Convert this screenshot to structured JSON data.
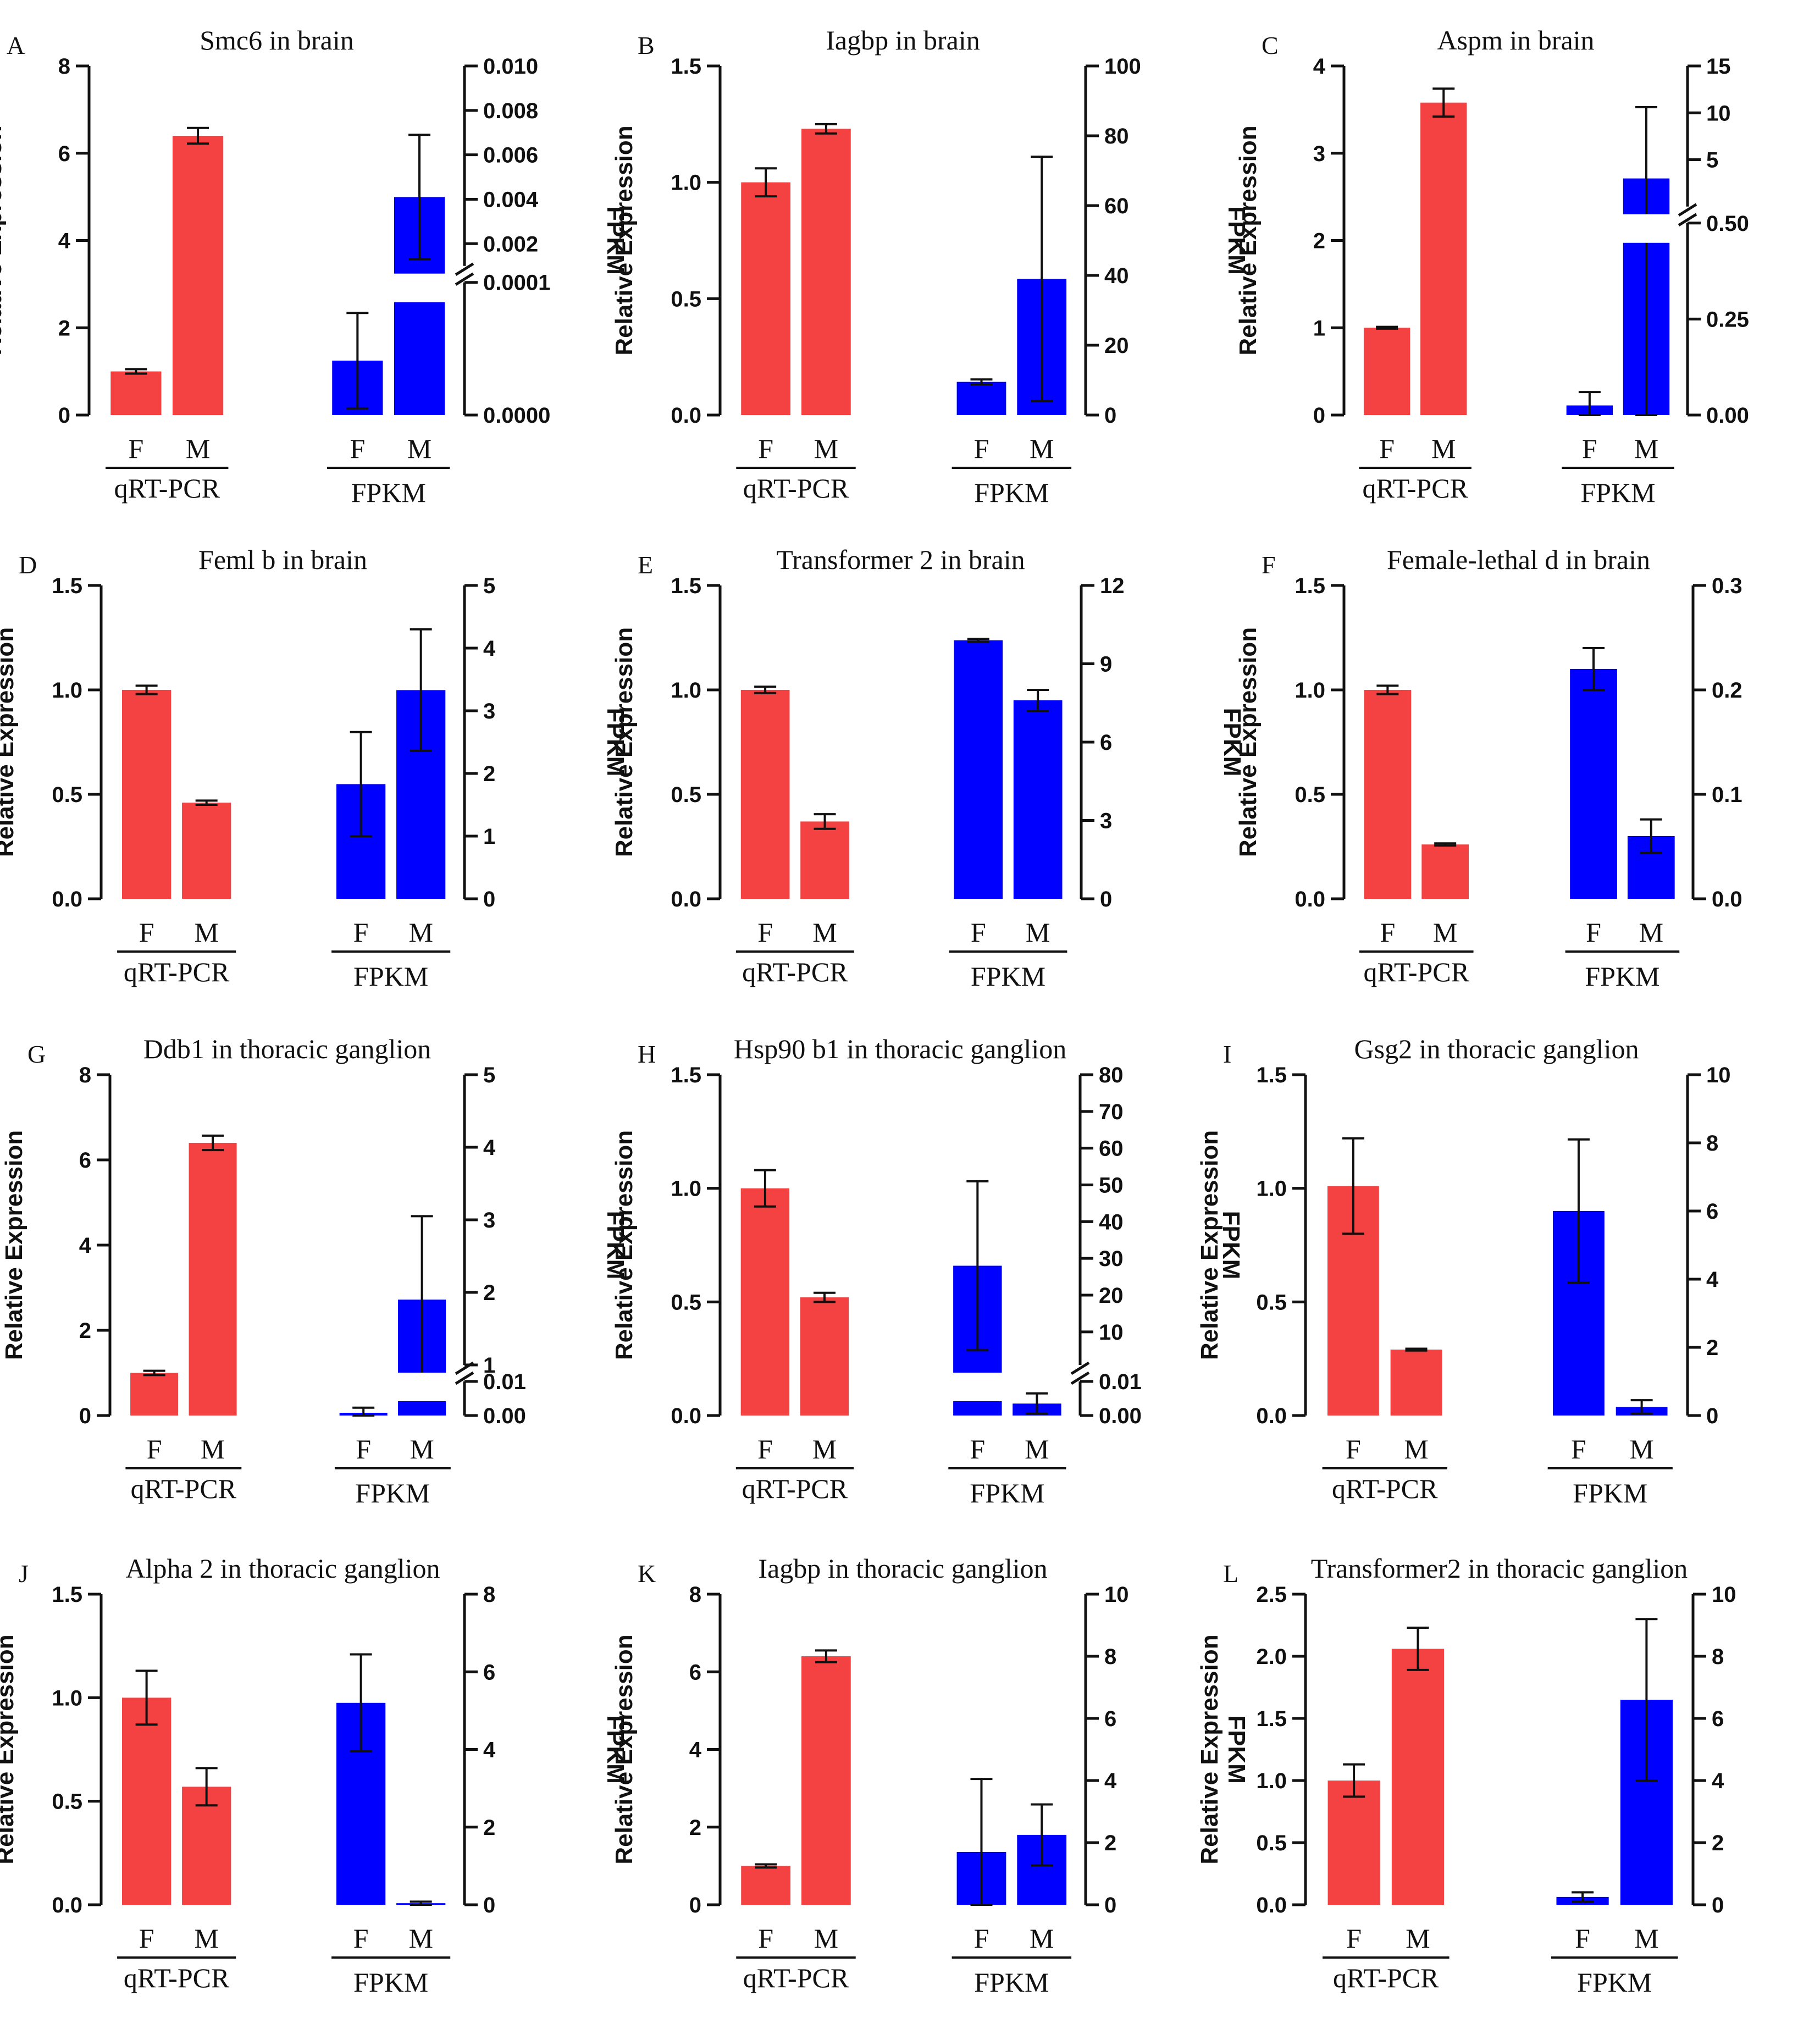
{
  "colors": {
    "qrt": "#f44141",
    "fpkm": "#0000ff",
    "axis": "#111111"
  },
  "common": {
    "left_axis_label": "Relative Expression",
    "right_axis_label": "FPKM",
    "group_labels": [
      "qRT-PCR",
      "FPKM"
    ],
    "category_labels": [
      "F",
      "M"
    ]
  },
  "chart_data": [
    {
      "panel": "A",
      "title": "Smc6 in brain",
      "type": "bar",
      "left": {
        "min": 0,
        "max": 8,
        "ticks": [
          "0",
          "2",
          "4",
          "6",
          "8"
        ]
      },
      "right": {
        "broken": true,
        "lower": {
          "min": 0,
          "max": 0.0001,
          "ticks": [
            "0.0000",
            "0.0001"
          ]
        },
        "upper": {
          "min": 0.001,
          "max": 0.01,
          "ticks": [
            "0.002",
            "0.004",
            "0.006",
            "0.008",
            "0.010"
          ]
        }
      },
      "qrt": [
        {
          "label": "F",
          "value": 1.0,
          "err": 0.05
        },
        {
          "label": "M",
          "value": 6.4,
          "err": 0.18
        }
      ],
      "fpkm": [
        {
          "label": "F",
          "value": 4.1e-05,
          "err": 3.6e-05
        },
        {
          "label": "M",
          "value": 0.0041,
          "err": 0.0028
        }
      ]
    },
    {
      "panel": "B",
      "title": "Iagbp in brain",
      "type": "bar",
      "left": {
        "min": 0,
        "max": 1.5,
        "ticks": [
          "0.0",
          "0.5",
          "1.0",
          "1.5"
        ]
      },
      "right": {
        "broken": false,
        "min": 0,
        "max": 100,
        "ticks": [
          "0",
          "20",
          "40",
          "60",
          "80",
          "100"
        ]
      },
      "qrt": [
        {
          "label": "F",
          "value": 1.0,
          "err": 0.06
        },
        {
          "label": "M",
          "value": 1.23,
          "err": 0.02
        }
      ],
      "fpkm": [
        {
          "label": "F",
          "value": 9.5,
          "err": 0.7
        },
        {
          "label": "M",
          "value": 39,
          "err": 35
        }
      ]
    },
    {
      "panel": "C",
      "title": "Aspm in brain",
      "type": "bar",
      "left": {
        "min": 0,
        "max": 4,
        "ticks": [
          "0",
          "1",
          "2",
          "3",
          "4"
        ]
      },
      "right": {
        "broken": true,
        "lower": {
          "min": 0,
          "max": 0.5,
          "ticks": [
            "0.00",
            "0.25",
            "0.50"
          ]
        },
        "upper": {
          "min": 0,
          "max": 15,
          "ticks": [
            "5",
            "10",
            "15"
          ]
        }
      },
      "qrt": [
        {
          "label": "F",
          "value": 1.0,
          "err": 0.01
        },
        {
          "label": "M",
          "value": 3.58,
          "err": 0.16
        }
      ],
      "fpkm": [
        {
          "label": "F",
          "value": 0.025,
          "err": 0.035
        },
        {
          "label": "M",
          "value": 3.0,
          "err": 7.6
        }
      ]
    },
    {
      "panel": "D",
      "title": "Feml b in brain",
      "type": "bar",
      "left": {
        "min": 0,
        "max": 1.5,
        "ticks": [
          "0.0",
          "0.5",
          "1.0",
          "1.5"
        ]
      },
      "right": {
        "broken": false,
        "min": 0,
        "max": 5,
        "ticks": [
          "0",
          "1",
          "2",
          "3",
          "4",
          "5"
        ]
      },
      "qrt": [
        {
          "label": "F",
          "value": 1.0,
          "err": 0.02
        },
        {
          "label": "M",
          "value": 0.46,
          "err": 0.01
        }
      ],
      "fpkm": [
        {
          "label": "F",
          "value": 1.83,
          "err": 0.83
        },
        {
          "label": "M",
          "value": 3.33,
          "err": 0.97
        }
      ]
    },
    {
      "panel": "E",
      "title": "Transformer 2 in brain",
      "type": "bar",
      "left": {
        "min": 0,
        "max": 1.5,
        "ticks": [
          "0.0",
          "0.5",
          "1.0",
          "1.5"
        ]
      },
      "right": {
        "broken": false,
        "min": 0,
        "max": 12,
        "ticks": [
          "0",
          "3",
          "6",
          "9",
          "12"
        ]
      },
      "qrt": [
        {
          "label": "F",
          "value": 1.0,
          "err": 0.015
        },
        {
          "label": "M",
          "value": 0.37,
          "err": 0.035
        }
      ],
      "fpkm": [
        {
          "label": "F",
          "value": 9.9,
          "err": 0.05
        },
        {
          "label": "M",
          "value": 7.6,
          "err": 0.4
        }
      ]
    },
    {
      "panel": "F",
      "title": "Female-lethal d in brain",
      "type": "bar",
      "left": {
        "min": 0,
        "max": 1.5,
        "ticks": [
          "0.0",
          "0.5",
          "1.0",
          "1.5"
        ]
      },
      "right": {
        "broken": false,
        "min": 0,
        "max": 0.3,
        "ticks": [
          "0.0",
          "0.1",
          "0.2",
          "0.3"
        ]
      },
      "qrt": [
        {
          "label": "F",
          "value": 1.0,
          "err": 0.02
        },
        {
          "label": "M",
          "value": 0.26,
          "err": 0.005
        }
      ],
      "fpkm": [
        {
          "label": "F",
          "value": 0.22,
          "err": 0.02
        },
        {
          "label": "M",
          "value": 0.06,
          "err": 0.016
        }
      ]
    },
    {
      "panel": "G",
      "title": "Ddb1 in thoracic ganglion",
      "type": "bar",
      "left": {
        "min": 0,
        "max": 8,
        "ticks": [
          "0",
          "2",
          "4",
          "6",
          "8"
        ]
      },
      "right": {
        "broken": true,
        "lower": {
          "min": 0,
          "max": 0.01,
          "ticks": [
            "0.00",
            "0.01"
          ]
        },
        "upper": {
          "min": 1,
          "max": 5,
          "ticks": [
            "1",
            "2",
            "3",
            "4",
            "5"
          ]
        }
      },
      "qrt": [
        {
          "label": "F",
          "value": 1.0,
          "err": 0.05
        },
        {
          "label": "M",
          "value": 6.4,
          "err": 0.17
        }
      ],
      "fpkm": [
        {
          "label": "F",
          "value": 0.0008,
          "err": 0.0015
        },
        {
          "label": "M",
          "value": 1.9,
          "err": 1.15
        }
      ]
    },
    {
      "panel": "H",
      "title": "Hsp90 b1 in thoracic ganglion",
      "type": "bar",
      "left": {
        "min": 0,
        "max": 1.5,
        "ticks": [
          "0.0",
          "0.5",
          "1.0",
          "1.5"
        ]
      },
      "right": {
        "broken": true,
        "lower": {
          "min": 0,
          "max": 0.01,
          "ticks": [
            "0.00",
            "0.01"
          ]
        },
        "upper": {
          "min": 1,
          "max": 80,
          "ticks": [
            "10",
            "20",
            "30",
            "40",
            "50",
            "60",
            "70",
            "80"
          ]
        }
      },
      "qrt": [
        {
          "label": "F",
          "value": 1.0,
          "err": 0.08
        },
        {
          "label": "M",
          "value": 0.52,
          "err": 0.02
        }
      ],
      "fpkm": [
        {
          "label": "F",
          "value": 28,
          "err": 23
        },
        {
          "label": "M",
          "value": 0.0035,
          "err": 0.003
        }
      ]
    },
    {
      "panel": "I",
      "title": "Gsg2 in thoracic ganglion",
      "type": "bar",
      "left": {
        "min": 0,
        "max": 1.5,
        "ticks": [
          "0.0",
          "0.5",
          "1.0",
          "1.5"
        ]
      },
      "right": {
        "broken": false,
        "min": 0,
        "max": 10,
        "ticks": [
          "0",
          "2",
          "4",
          "6",
          "8",
          "10"
        ]
      },
      "qrt": [
        {
          "label": "F",
          "value": 1.01,
          "err": 0.21
        },
        {
          "label": "M",
          "value": 0.29,
          "err": 0.004
        }
      ],
      "fpkm": [
        {
          "label": "F",
          "value": 6.0,
          "err": 2.1
        },
        {
          "label": "M",
          "value": 0.25,
          "err": 0.2
        }
      ]
    },
    {
      "panel": "J",
      "title": "Alpha 2 in thoracic ganglion",
      "type": "bar",
      "left": {
        "min": 0,
        "max": 1.5,
        "ticks": [
          "0.0",
          "0.5",
          "1.0",
          "1.5"
        ]
      },
      "right": {
        "broken": false,
        "min": 0,
        "max": 8,
        "ticks": [
          "0",
          "2",
          "4",
          "6",
          "8"
        ]
      },
      "qrt": [
        {
          "label": "F",
          "value": 1.0,
          "err": 0.13
        },
        {
          "label": "M",
          "value": 0.57,
          "err": 0.09
        }
      ],
      "fpkm": [
        {
          "label": "F",
          "value": 5.2,
          "err": 1.25
        },
        {
          "label": "M",
          "value": 0.04,
          "err": 0.04
        }
      ]
    },
    {
      "panel": "K",
      "title": "Iagbp in thoracic ganglion",
      "type": "bar",
      "left": {
        "min": 0,
        "max": 8,
        "ticks": [
          "0",
          "2",
          "4",
          "6",
          "8"
        ]
      },
      "right": {
        "broken": false,
        "min": 0,
        "max": 10,
        "ticks": [
          "0",
          "2",
          "4",
          "6",
          "8",
          "10"
        ]
      },
      "qrt": [
        {
          "label": "F",
          "value": 1.0,
          "err": 0.04
        },
        {
          "label": "M",
          "value": 6.4,
          "err": 0.15
        }
      ],
      "fpkm": [
        {
          "label": "F",
          "value": 1.7,
          "err": 2.35
        },
        {
          "label": "M",
          "value": 2.25,
          "err": 0.98
        }
      ]
    },
    {
      "panel": "L",
      "title": "Transformer2 in thoracic ganglion",
      "type": "bar",
      "left": {
        "min": 0,
        "max": 2.5,
        "ticks": [
          "0.0",
          "0.5",
          "1.0",
          "1.5",
          "2.0",
          "2.5"
        ]
      },
      "right": {
        "broken": false,
        "min": 0,
        "max": 10,
        "ticks": [
          "0",
          "2",
          "4",
          "6",
          "8",
          "10"
        ]
      },
      "qrt": [
        {
          "label": "F",
          "value": 1.0,
          "err": 0.13
        },
        {
          "label": "M",
          "value": 2.06,
          "err": 0.17
        }
      ],
      "fpkm": [
        {
          "label": "F",
          "value": 0.25,
          "err": 0.15
        },
        {
          "label": "M",
          "value": 6.6,
          "err": 2.6
        }
      ]
    }
  ]
}
